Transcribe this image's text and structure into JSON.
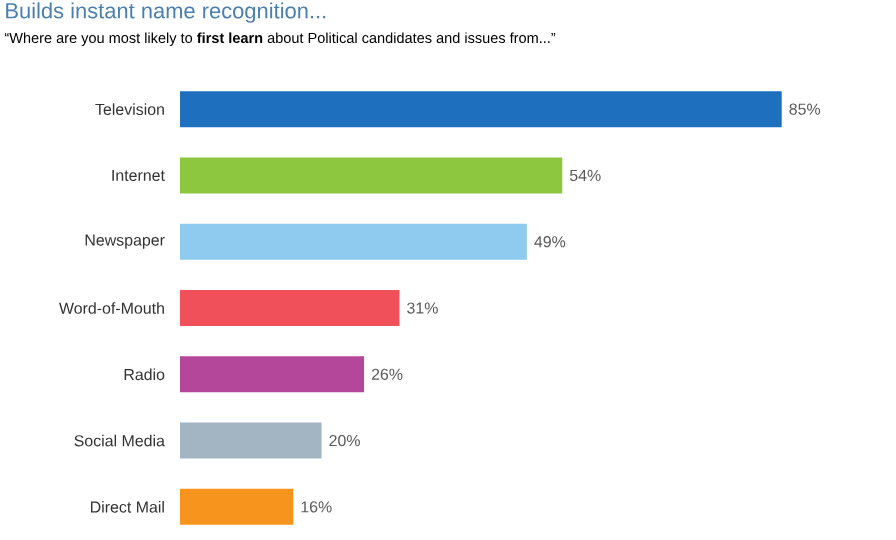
{
  "chart_data": {
    "type": "bar",
    "orientation": "horizontal",
    "title": "Builds instant name recognition...",
    "subtitle": "“Where are you most likely to **first learn** about Political candidates and issues from...”",
    "categories": [
      "Television",
      "Internet",
      "Newspaper",
      "Word-of-Mouth",
      "Radio",
      "Social Media",
      "Direct Mail"
    ],
    "values": [
      85,
      54,
      49,
      31,
      26,
      20,
      16
    ],
    "value_labels": [
      "85%",
      "54%",
      "49%",
      "31%",
      "26%",
      "20%",
      "16%"
    ],
    "colors": [
      "#1f6fbf",
      "#8dc63f",
      "#8ecbef",
      "#f0505a",
      "#b5479b",
      "#a3b5c3",
      "#f7941d"
    ]
  }
}
